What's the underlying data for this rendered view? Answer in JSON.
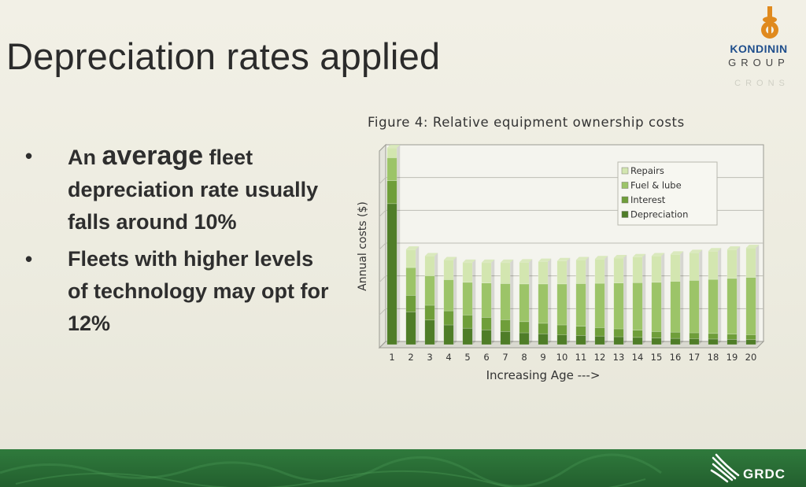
{
  "slide": {
    "title": "Depreciation rates applied",
    "bullets": [
      {
        "pre": "An ",
        "emph": "average",
        "post": " fleet depreciation rate usually falls around 10%"
      },
      {
        "pre": "Fleets with higher levels of technology may opt for 12%",
        "emph": "",
        "post": ""
      }
    ],
    "bullet_symbol": "•"
  },
  "logo": {
    "name": "KONDININ",
    "subtitle": "GROUP",
    "faint_text": "CRONS",
    "brand_color": "#1f4e8c",
    "accent_color": "#e08a1e"
  },
  "footer": {
    "brand": "GRDC",
    "color": "#2f7a3c"
  },
  "chart_data": {
    "type": "bar",
    "stacked": true,
    "title": "Figure 4: Relative equipment ownership costs",
    "xlabel": "Increasing Age --->",
    "ylabel": "Annual costs ($)",
    "categories": [
      "1",
      "2",
      "3",
      "4",
      "5",
      "6",
      "7",
      "8",
      "9",
      "10",
      "11",
      "12",
      "13",
      "14",
      "15",
      "16",
      "17",
      "18",
      "19",
      "20"
    ],
    "ylim": [
      0,
      6
    ],
    "grid": true,
    "legend_position": "top-right",
    "series": [
      {
        "name": "Depreciation",
        "color": "#4f7d28",
        "values": [
          4.3,
          1.0,
          0.75,
          0.6,
          0.5,
          0.45,
          0.4,
          0.36,
          0.33,
          0.3,
          0.28,
          0.26,
          0.24,
          0.22,
          0.2,
          0.19,
          0.18,
          0.17,
          0.16,
          0.15
        ]
      },
      {
        "name": "Interest",
        "color": "#6f9e3a",
        "values": [
          0.7,
          0.5,
          0.45,
          0.43,
          0.4,
          0.38,
          0.36,
          0.34,
          0.32,
          0.3,
          0.28,
          0.26,
          0.24,
          0.22,
          0.2,
          0.19,
          0.18,
          0.17,
          0.16,
          0.15
        ]
      },
      {
        "name": "Fuel & lube",
        "color": "#9cc468",
        "values": [
          0.7,
          0.85,
          0.9,
          0.95,
          1.0,
          1.05,
          1.1,
          1.15,
          1.2,
          1.25,
          1.3,
          1.35,
          1.4,
          1.45,
          1.5,
          1.55,
          1.6,
          1.65,
          1.7,
          1.75
        ]
      },
      {
        "name": "Repairs",
        "color": "#d3e6b0",
        "values": [
          0.3,
          0.55,
          0.6,
          0.6,
          0.6,
          0.62,
          0.64,
          0.66,
          0.68,
          0.7,
          0.72,
          0.74,
          0.76,
          0.78,
          0.8,
          0.82,
          0.84,
          0.86,
          0.88,
          0.9
        ]
      }
    ]
  }
}
